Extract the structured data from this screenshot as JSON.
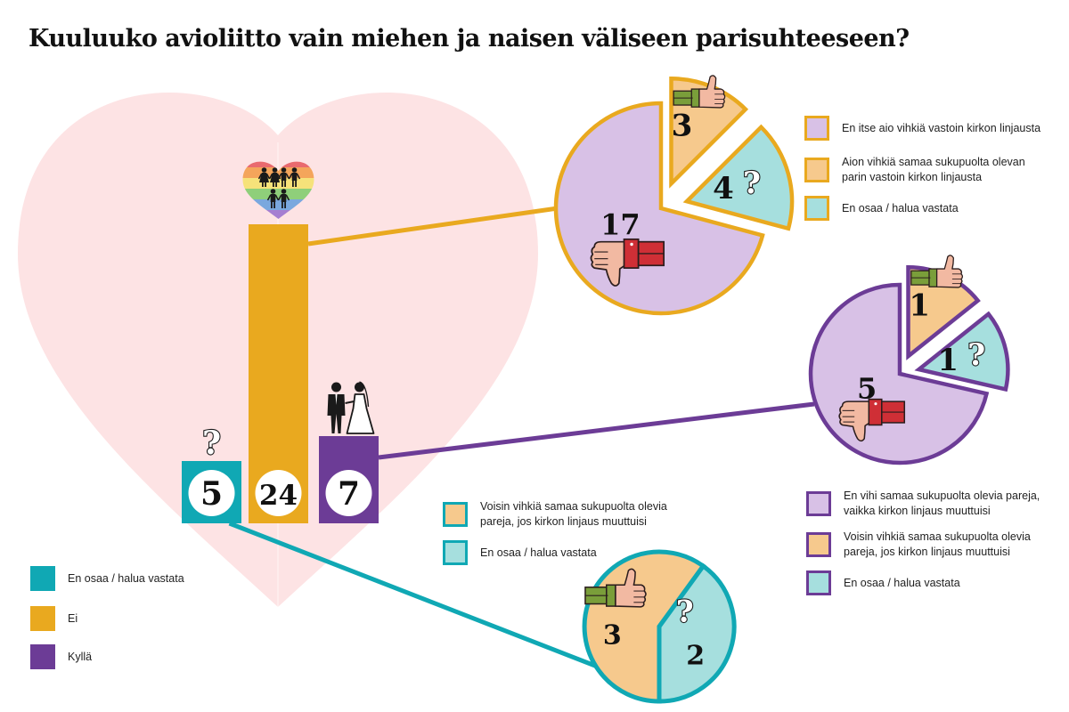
{
  "title": "Kuuluuko avioliitto vain miehen ja naisen väliseen parisuhteeseen?",
  "colors": {
    "teal": "#10a8b4",
    "orange": "#e9a91f",
    "purple": "#6c3c96",
    "lavender": "#d8c1e6",
    "peach": "#f6c98d",
    "mint": "#a6dfde",
    "heart": "#fde3e4",
    "skin": "#f2b9a2",
    "red_cuff": "#cf2f36",
    "green_cuff": "#7a9e3a"
  },
  "main_chart": {
    "type": "bar",
    "categories": [
      "En osaa / halua vastata",
      "Ei",
      "Kyllä"
    ],
    "values": [
      5,
      24,
      7
    ],
    "value_labels": [
      "5",
      "24",
      "7"
    ],
    "category_icons": [
      "question-icon",
      "same-sex-couples-heart-icon",
      "bride-groom-icon"
    ],
    "colors": [
      "#10a8b4",
      "#e9a91f",
      "#6c3c96"
    ]
  },
  "main_legend": [
    {
      "label": "En osaa / halua vastata",
      "color": "#10a8b4"
    },
    {
      "label": "Ei",
      "color": "#e9a91f"
    },
    {
      "label": "Kyllä",
      "color": "#6c3c96"
    }
  ],
  "chart_data": [
    {
      "type": "bar",
      "title": "Kuuluuko avioliitto vain miehen ja naisen väliseen parisuhteeseen?",
      "categories": [
        "En osaa / halua vastata",
        "Ei",
        "Kyllä"
      ],
      "values": [
        5,
        24,
        7
      ],
      "xlabel": "",
      "ylabel": "",
      "grid": false,
      "legend_placement": "bottom-left"
    },
    {
      "type": "pie",
      "parent_category": "Ei",
      "categories": [
        "En itse aio vihkiä vastoin kirkon linjausta",
        "Aion vihkiä samaa sukupuolta olevan parin vastoin kirkon linjausta",
        "En osaa / halua vastata"
      ],
      "values": [
        17,
        3,
        4
      ],
      "colors": [
        "#d8c1e6",
        "#f6c98d",
        "#a6dfde"
      ],
      "exploded": [
        false,
        true,
        true
      ],
      "legend_placement": "right"
    },
    {
      "type": "pie",
      "parent_category": "Kyllä",
      "categories": [
        "En vihi samaa sukupuolta olevia pareja, vaikka kirkon linjaus muuttuisi",
        "Voisin vihkiä samaa sukupuolta olevia pareja, jos kirkon linjaus muuttuisi",
        "En osaa / halua vastata"
      ],
      "values": [
        5,
        1,
        1
      ],
      "colors": [
        "#d8c1e6",
        "#f6c98d",
        "#a6dfde"
      ],
      "exploded": [
        false,
        true,
        true
      ],
      "legend_placement": "bottom"
    },
    {
      "type": "pie",
      "parent_category": "En osaa / halua vastata",
      "categories": [
        "Voisin vihkiä samaa sukupuolta olevia pareja, jos kirkon linjaus muuttuisi",
        "En osaa / halua vastata"
      ],
      "values": [
        3,
        2
      ],
      "colors": [
        "#f6c98d",
        "#a6dfde"
      ],
      "exploded": [
        false,
        false
      ],
      "legend_placement": "left"
    }
  ],
  "pies": [
    {
      "id": "ei",
      "border_color": "#e9a91f",
      "slice_values": [
        17,
        3,
        4
      ],
      "slice_labels": [
        "17",
        "3",
        "4"
      ],
      "slice_colors": [
        "#d8c1e6",
        "#f6c98d",
        "#a6dfde"
      ],
      "slice_icons": [
        "thumbs-down-icon",
        "thumbs-up-icon",
        "question-icon"
      ],
      "legend": [
        {
          "label": "En itse aio vihkiä vastoin kirkon linjausta",
          "color": "#d8c1e6"
        },
        {
          "label": "Aion vihkiä samaa sukupuolta olevan\nparin vastoin kirkon linjausta",
          "color": "#f6c98d"
        },
        {
          "label": "En osaa / halua vastata",
          "color": "#a6dfde"
        }
      ]
    },
    {
      "id": "kylla",
      "border_color": "#6c3c96",
      "slice_values": [
        5,
        1,
        1
      ],
      "slice_labels": [
        "5",
        "1",
        "1"
      ],
      "slice_colors": [
        "#d8c1e6",
        "#f6c98d",
        "#a6dfde"
      ],
      "slice_icons": [
        "thumbs-down-icon",
        "thumbs-up-icon",
        "question-icon"
      ],
      "legend": [
        {
          "label": "En vihi samaa sukupuolta olevia pareja,\nvaikka kirkon linjaus muuttuisi",
          "color": "#d8c1e6"
        },
        {
          "label": "Voisin vihkiä samaa sukupuolta olevia\npareja, jos kirkon linjaus muuttuisi",
          "color": "#f6c98d"
        },
        {
          "label": "En osaa / halua vastata",
          "color": "#a6dfde"
        }
      ]
    },
    {
      "id": "eos",
      "border_color": "#10a8b4",
      "slice_values": [
        3,
        2
      ],
      "slice_labels": [
        "3",
        "2"
      ],
      "slice_colors": [
        "#f6c98d",
        "#a6dfde"
      ],
      "slice_icons": [
        "thumbs-up-icon",
        "question-icon"
      ],
      "legend": [
        {
          "label": "Voisin vihkiä samaa sukupuolta olevia\npareja, jos kirkon linjaus muuttuisi",
          "color": "#f6c98d"
        },
        {
          "label": "En osaa / halua vastata",
          "color": "#a6dfde"
        }
      ]
    }
  ]
}
